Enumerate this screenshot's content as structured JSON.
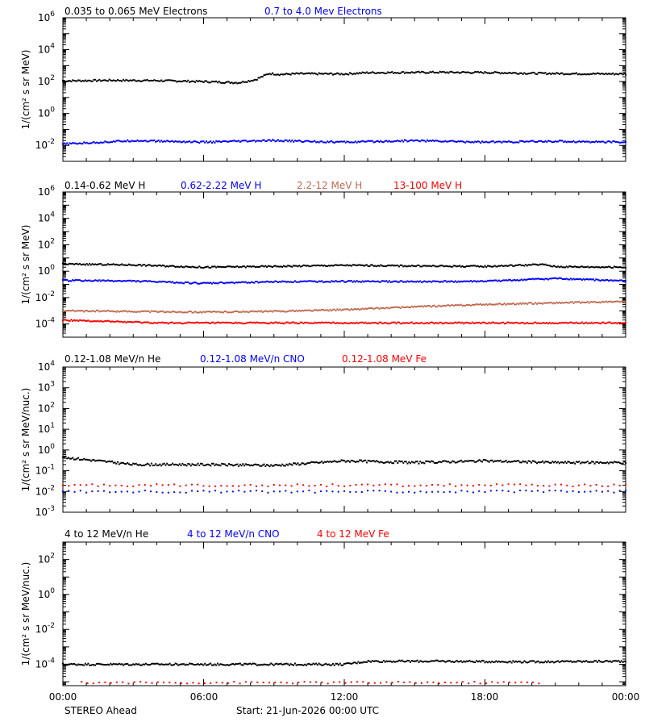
{
  "chart_data": [
    {
      "type": "scatter",
      "ylabel": "1/(cm² s sr MeV)",
      "yscale": "log",
      "ylim": [
        0.001,
        1000000
      ],
      "y_ticks": [
        {
          "exp": "-2",
          "v": 0.01
        },
        {
          "exp": "0",
          "v": 1
        },
        {
          "exp": "2",
          "v": 100
        },
        {
          "exp": "4",
          "v": 10000
        },
        {
          "exp": "6",
          "v": 1000000
        }
      ],
      "series": [
        {
          "name": "0.035 to 0.065 MeV Electrons",
          "color": "#000000",
          "points": [
            [
              0,
              110
            ],
            [
              2,
              120
            ],
            [
              4,
              115
            ],
            [
              6,
              100
            ],
            [
              7.5,
              85
            ],
            [
              8.2,
              130
            ],
            [
              8.8,
              320
            ],
            [
              9.3,
              280
            ],
            [
              10,
              310
            ],
            [
              12,
              300
            ],
            [
              13,
              360
            ],
            [
              16,
              380
            ],
            [
              18,
              370
            ],
            [
              20,
              330
            ],
            [
              22,
              310
            ],
            [
              24,
              300
            ]
          ]
        },
        {
          "name": "0.7 to 4.0 Mev Electrons",
          "color": "#0000ff",
          "points": [
            [
              0,
              0.012
            ],
            [
              3,
              0.02
            ],
            [
              6,
              0.016
            ],
            [
              9,
              0.02
            ],
            [
              12,
              0.016
            ],
            [
              15,
              0.02
            ],
            [
              18,
              0.016
            ],
            [
              21,
              0.018
            ],
            [
              24,
              0.016
            ]
          ]
        }
      ]
    },
    {
      "type": "scatter",
      "ylabel": "1/(cm² s sr MeV)",
      "yscale": "log",
      "ylim": [
        1e-05,
        1000000
      ],
      "y_ticks": [
        {
          "exp": "-4",
          "v": 0.0001
        },
        {
          "exp": "-2",
          "v": 0.01
        },
        {
          "exp": "0",
          "v": 1
        },
        {
          "exp": "2",
          "v": 100
        },
        {
          "exp": "4",
          "v": 10000
        },
        {
          "exp": "6",
          "v": 1000000
        }
      ],
      "series": [
        {
          "name": "0.14-0.62 MeV H",
          "color": "#000000",
          "points": [
            [
              0,
              3.5
            ],
            [
              3,
              3.0
            ],
            [
              6,
              2.0
            ],
            [
              9,
              2.3
            ],
            [
              12,
              2.8
            ],
            [
              15,
              2.5
            ],
            [
              18,
              2.3
            ],
            [
              20.5,
              3.2
            ],
            [
              21,
              2.2
            ],
            [
              24,
              2.0
            ]
          ]
        },
        {
          "name": "0.62-2.22 MeV H",
          "color": "#0000ff",
          "points": [
            [
              0,
              0.2
            ],
            [
              3,
              0.18
            ],
            [
              6,
              0.12
            ],
            [
              9,
              0.16
            ],
            [
              12,
              0.17
            ],
            [
              15,
              0.16
            ],
            [
              18,
              0.17
            ],
            [
              21,
              0.28
            ],
            [
              24,
              0.18
            ]
          ]
        },
        {
          "name": "2.2-12 MeV H",
          "color": "#c06a50",
          "points": [
            [
              0,
              0.001
            ],
            [
              3,
              0.0009
            ],
            [
              6,
              0.0008
            ],
            [
              9,
              0.0009
            ],
            [
              12,
              0.0012
            ],
            [
              15,
              0.002
            ],
            [
              18,
              0.003
            ],
            [
              21,
              0.004
            ],
            [
              24,
              0.005
            ]
          ]
        },
        {
          "name": "13-100 MeV H",
          "color": "#ff0000",
          "points": [
            [
              0,
              0.0002
            ],
            [
              4,
              0.00012
            ],
            [
              8,
              0.00012
            ],
            [
              12,
              0.00012
            ],
            [
              16,
              0.00012
            ],
            [
              20,
              0.00012
            ],
            [
              24,
              0.00012
            ]
          ]
        }
      ]
    },
    {
      "type": "scatter",
      "ylabel": "1/(cm² s sr MeV/nuc.)",
      "yscale": "log",
      "ylim": [
        0.001,
        10000
      ],
      "y_ticks": [
        {
          "exp": "-3",
          "v": 0.001
        },
        {
          "exp": "-2",
          "v": 0.01
        },
        {
          "exp": "-1",
          "v": 0.1
        },
        {
          "exp": "0",
          "v": 1
        },
        {
          "exp": "1",
          "v": 10
        },
        {
          "exp": "2",
          "v": 100
        },
        {
          "exp": "3",
          "v": 1000
        },
        {
          "exp": "4",
          "v": 10000
        }
      ],
      "series": [
        {
          "name": "0.12-1.08 MeV/n He",
          "color": "#000000",
          "points": [
            [
              0,
              0.45
            ],
            [
              3,
              0.2
            ],
            [
              6,
              0.2
            ],
            [
              9,
              0.18
            ],
            [
              12,
              0.3
            ],
            [
              15,
              0.25
            ],
            [
              18,
              0.3
            ],
            [
              21,
              0.25
            ],
            [
              24,
              0.25
            ]
          ]
        },
        {
          "name": "0.12-1.08 MeV/n CNO",
          "color": "#0000ff",
          "points": [
            [
              0,
              0.01
            ],
            [
              24,
              0.01
            ]
          ]
        },
        {
          "name": "0.12-1.08 MeV Fe",
          "color": "#ff0000",
          "points": [
            [
              0,
              0.02
            ],
            [
              24,
              0.02
            ]
          ]
        }
      ]
    },
    {
      "type": "scatter",
      "ylabel": "1/(cm² s sr MeV/nuc.)",
      "yscale": "log",
      "ylim": [
        6e-06,
        1000
      ],
      "y_ticks": [
        {
          "exp": "-4",
          "v": 0.0001
        },
        {
          "exp": "-2",
          "v": 0.01
        },
        {
          "exp": "0",
          "v": 1
        },
        {
          "exp": "2",
          "v": 100
        }
      ],
      "series": [
        {
          "name": "4 to 12 MeV/n He",
          "color": "#000000",
          "points": [
            [
              0,
              0.0001
            ],
            [
              12,
              0.0001
            ],
            [
              13,
              0.00015
            ],
            [
              16,
              0.00015
            ],
            [
              20,
              0.00014
            ],
            [
              24,
              0.00015
            ]
          ]
        },
        {
          "name": "4 to 12 MeV/n CNO",
          "color": "#0000ff",
          "points": []
        },
        {
          "name": "4 to 12 MeV Fe",
          "color": "#ff0000",
          "points": [
            [
              0.8,
              9e-06
            ],
            [
              14.3,
              9e-06
            ],
            [
              16.7,
              9e-06
            ],
            [
              20.3,
              9e-06
            ]
          ]
        }
      ]
    }
  ],
  "x_axis": {
    "xlim": [
      0,
      24
    ],
    "tick_labels": [
      {
        "t": 0,
        "label": "00:00"
      },
      {
        "t": 6,
        "label": "06:00"
      },
      {
        "t": 12,
        "label": "12:00"
      },
      {
        "t": 18,
        "label": "18:00"
      },
      {
        "t": 24,
        "label": "00:00"
      }
    ]
  },
  "footer": {
    "spacecraft": "STEREO Ahead",
    "start": "Start: 21-Jun-2026 00:00 UTC"
  }
}
